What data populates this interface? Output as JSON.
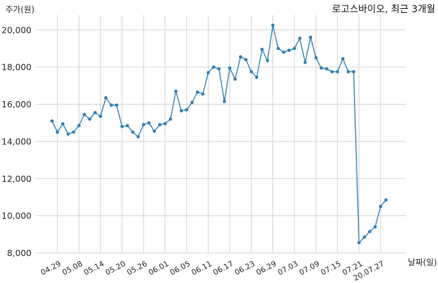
{
  "chart_data": {
    "type": "line",
    "title": "로고스바이오, 최근 3개월",
    "ylabel": "주가(원)",
    "xlabel": "날짜(일)",
    "ylim": [
      8000,
      20800
    ],
    "yticks": [
      8000,
      10000,
      12000,
      14000,
      16000,
      18000,
      20000
    ],
    "ytick_labels": [
      "8,000",
      "10,000",
      "12,000",
      "14,000",
      "16,000",
      "18,000",
      "20,000"
    ],
    "grid": true,
    "xtick_labels": [
      {
        "index": 1,
        "label": "04.29"
      },
      {
        "index": 5,
        "label": "05.08"
      },
      {
        "index": 9,
        "label": "05.14"
      },
      {
        "index": 13,
        "label": "05.20"
      },
      {
        "index": 17,
        "label": "05.26"
      },
      {
        "index": 21,
        "label": "06.01"
      },
      {
        "index": 25,
        "label": "06.05"
      },
      {
        "index": 29,
        "label": "06.11"
      },
      {
        "index": 33,
        "label": "06.17"
      },
      {
        "index": 37,
        "label": "06.23"
      },
      {
        "index": 41,
        "label": "06.29"
      },
      {
        "index": 45,
        "label": "07.03"
      },
      {
        "index": 49,
        "label": "07.09"
      },
      {
        "index": 53,
        "label": "07.15"
      },
      {
        "index": 57,
        "label": "07.21"
      },
      {
        "index": 61,
        "label": "20.07.27"
      }
    ],
    "values": [
      15100,
      14500,
      14950,
      14400,
      14500,
      14850,
      15450,
      15200,
      15550,
      15350,
      16350,
      15950,
      15950,
      14800,
      14850,
      14500,
      14250,
      14900,
      15000,
      14550,
      14900,
      14950,
      15200,
      16700,
      15650,
      15700,
      16100,
      16650,
      16550,
      17700,
      18000,
      17900,
      16150,
      17950,
      17350,
      18550,
      18400,
      17750,
      17450,
      18950,
      18350,
      20250,
      19000,
      18800,
      18900,
      19000,
      19550,
      18250,
      19600,
      18500,
      17950,
      17900,
      17750,
      17750,
      18450,
      17750,
      17750,
      8550,
      8850,
      9150,
      9400,
      10500,
      10850
    ],
    "color": "#2f7eb4"
  }
}
